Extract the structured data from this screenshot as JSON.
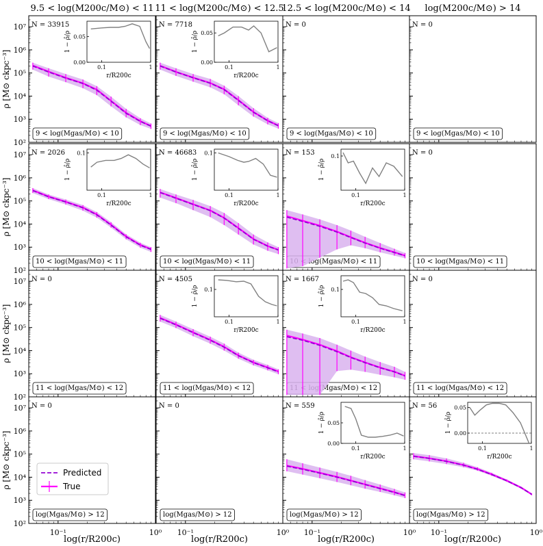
{
  "figure": {
    "column_titles": [
      "9.5 < log(M200c/M⊙) < 11",
      "11 < log(M200c/M⊙) < 12.5",
      "12.5 < log(M200c/M⊙) < 14",
      "log(M200c/M⊙) > 14"
    ],
    "row_labels": [
      "9 < log(Mgas/M⊙) < 10",
      "10 < log(Mgas/M⊙) < 11",
      "11 < log(Mgas/M⊙) < 12",
      "log(Mgas/M⊙) > 12"
    ],
    "y_axis_label": "ρ [M⊙ ckpc⁻³]",
    "x_axis_label": "log(r/R200c)",
    "inset_y_label": "1 − ρ̂/ρ",
    "inset_x_label": "r/R200c",
    "legend": {
      "predicted": "Predicted",
      "true": "True"
    },
    "colors": {
      "predicted": "#9400d3",
      "true": "#ff00ff",
      "band": "#d9b3ee",
      "inset_line": "#808080"
    }
  },
  "chart_data": {
    "type": "line",
    "x_scale": "log",
    "y_scale": "log",
    "xlim": [
      0.05,
      1.0
    ],
    "ylim": [
      100,
      30000000
    ],
    "x_tick_labels": [
      "10⁻¹",
      "10⁰"
    ],
    "y_tick_labels": [
      "10²",
      "10³",
      "10⁴",
      "10⁵",
      "10⁶",
      "10⁷"
    ],
    "panels": [
      {
        "row": 0,
        "col": 0,
        "n": "N = 33915",
        "x": [
          0.055,
          0.08,
          0.12,
          0.18,
          0.25,
          0.35,
          0.5,
          0.7,
          0.9
        ],
        "predicted": [
          200000,
          110000,
          60000,
          35000,
          18000,
          6000,
          1800,
          800,
          500
        ],
        "true": [
          210000,
          115000,
          62000,
          36000,
          19000,
          6200,
          1900,
          820,
          510
        ],
        "band_lo": [
          140000,
          70000,
          40000,
          22000,
          11000,
          3600,
          1200,
          560,
          380
        ],
        "band_hi": [
          280000,
          160000,
          90000,
          52000,
          27000,
          9500,
          2800,
          1100,
          650
        ],
        "inset": {
          "x": [
            0.06,
            0.1,
            0.15,
            0.22,
            0.3,
            0.42,
            0.6,
            0.8,
            0.95
          ],
          "y": [
            0.065,
            0.067,
            0.068,
            0.068,
            0.07,
            0.075,
            0.07,
            0.04,
            0.027
          ],
          "ylim": [
            0,
            0.08
          ],
          "yticks": [
            "0.00",
            "0.05"
          ],
          "xticks": [
            "0.1",
            "1"
          ]
        }
      },
      {
        "row": 0,
        "col": 1,
        "n": "N = 7718",
        "x": [
          0.055,
          0.08,
          0.12,
          0.18,
          0.25,
          0.35,
          0.5,
          0.7,
          0.9
        ],
        "predicted": [
          200000,
          110000,
          62000,
          36000,
          19000,
          6500,
          2000,
          850,
          520
        ],
        "true": [
          205000,
          112000,
          63000,
          37000,
          19500,
          6700,
          2050,
          870,
          530
        ],
        "band_lo": [
          140000,
          75000,
          42000,
          24000,
          12000,
          4000,
          1300,
          600,
          390
        ],
        "band_hi": [
          280000,
          160000,
          90000,
          55000,
          28000,
          10000,
          3000,
          1150,
          680
        ],
        "inset": {
          "x": [
            0.06,
            0.08,
            0.12,
            0.18,
            0.25,
            0.32,
            0.45,
            0.65,
            0.95
          ],
          "y": [
            0.045,
            0.05,
            0.06,
            0.06,
            0.055,
            0.062,
            0.05,
            0.018,
            0.025
          ],
          "ylim": [
            0,
            0.07
          ],
          "yticks": [
            "0.00",
            "0.05"
          ],
          "xticks": [
            "0.1",
            "1"
          ]
        }
      },
      {
        "row": 0,
        "col": 2,
        "n": "N = 0"
      },
      {
        "row": 0,
        "col": 3,
        "n": "N = 0"
      },
      {
        "row": 1,
        "col": 0,
        "n": "N = 2026",
        "x": [
          0.055,
          0.08,
          0.12,
          0.18,
          0.25,
          0.35,
          0.5,
          0.7,
          0.9
        ],
        "predicted": [
          280000,
          150000,
          90000,
          50000,
          25000,
          9000,
          2800,
          1200,
          800
        ],
        "true": [
          290000,
          155000,
          92000,
          52000,
          26000,
          9300,
          2900,
          1250,
          820
        ],
        "band_lo": [
          220000,
          120000,
          70000,
          38000,
          19000,
          7000,
          2200,
          950,
          620
        ],
        "band_hi": [
          360000,
          190000,
          115000,
          66000,
          33000,
          12000,
          3600,
          1550,
          1000
        ],
        "inset": {
          "x": [
            0.06,
            0.08,
            0.12,
            0.18,
            0.25,
            0.35,
            0.5,
            0.7,
            0.95
          ],
          "y": [
            0.062,
            0.075,
            0.08,
            0.08,
            0.085,
            0.095,
            0.085,
            0.07,
            0.06
          ],
          "ylim": [
            0,
            0.11
          ],
          "yticks": [
            "0.1"
          ],
          "xticks": [
            "0.1",
            "1"
          ]
        }
      },
      {
        "row": 1,
        "col": 1,
        "n": "N = 46683",
        "x": [
          0.055,
          0.08,
          0.12,
          0.18,
          0.25,
          0.35,
          0.5,
          0.7,
          0.9
        ],
        "predicted": [
          230000,
          130000,
          70000,
          38000,
          18000,
          6500,
          2200,
          1100,
          750
        ],
        "true": [
          235000,
          135000,
          72000,
          39000,
          18500,
          6700,
          2250,
          1120,
          770
        ],
        "band_lo": [
          140000,
          80000,
          40000,
          20000,
          9000,
          3500,
          1300,
          700,
          500
        ],
        "band_hi": [
          330000,
          190000,
          110000,
          60000,
          30000,
          11000,
          3500,
          1600,
          1000
        ],
        "inset": {
          "x": [
            0.06,
            0.1,
            0.15,
            0.2,
            0.25,
            0.35,
            0.5,
            0.7,
            0.95
          ],
          "y": [
            0.1,
            0.09,
            0.08,
            0.075,
            0.077,
            0.085,
            0.07,
            0.04,
            0.035
          ],
          "ylim": [
            0,
            0.11
          ],
          "yticks": [
            "0.1"
          ],
          "xticks": [
            "0.1",
            "1"
          ]
        }
      },
      {
        "row": 1,
        "col": 2,
        "n": "N = 153",
        "x": [
          0.055,
          0.08,
          0.12,
          0.18,
          0.25,
          0.35,
          0.5,
          0.7,
          0.9
        ],
        "predicted": [
          20000,
          13000,
          8000,
          4500,
          2600,
          1500,
          900,
          580,
          420
        ],
        "true": [
          22000,
          14000,
          8500,
          4700,
          2700,
          1550,
          920,
          600,
          430
        ],
        "band_lo": [
          120,
          150,
          350,
          800,
          1200,
          900,
          600,
          430,
          330
        ],
        "band_hi": [
          40000,
          26000,
          16000,
          9000,
          5200,
          2800,
          1500,
          850,
          560
        ],
        "inset": {
          "x": [
            0.055,
            0.07,
            0.09,
            0.12,
            0.16,
            0.22,
            0.3,
            0.42,
            0.6,
            0.9
          ],
          "y": [
            0.11,
            0.08,
            0.085,
            0.05,
            0.02,
            0.065,
            0.04,
            0.08,
            0.07,
            0.04
          ],
          "ylim": [
            0,
            0.12
          ],
          "yticks": [
            "0.1"
          ],
          "xticks": [
            "0.1",
            "1"
          ]
        }
      },
      {
        "row": 1,
        "col": 3,
        "n": "N = 0"
      },
      {
        "row": 2,
        "col": 0,
        "n": "N = 0"
      },
      {
        "row": 2,
        "col": 1,
        "n": "N = 4505",
        "x": [
          0.055,
          0.08,
          0.12,
          0.18,
          0.25,
          0.35,
          0.5,
          0.7,
          0.9
        ],
        "predicted": [
          250000,
          130000,
          60000,
          28000,
          14000,
          6000,
          3000,
          1800,
          1200
        ],
        "true": [
          260000,
          135000,
          62000,
          29000,
          14500,
          6200,
          3100,
          1850,
          1250
        ],
        "band_lo": [
          180000,
          95000,
          42000,
          20000,
          10000,
          4500,
          2300,
          1400,
          950
        ],
        "band_hi": [
          350000,
          180000,
          85000,
          40000,
          20000,
          8200,
          4000,
          2400,
          1550
        ],
        "inset": {
          "x": [
            0.06,
            0.09,
            0.14,
            0.2,
            0.28,
            0.4,
            0.55,
            0.75,
            0.95
          ],
          "y": [
            0.135,
            0.133,
            0.128,
            0.13,
            0.12,
            0.075,
            0.055,
            0.045,
            0.04
          ],
          "ylim": [
            0,
            0.15
          ],
          "yticks": [
            "0.1"
          ],
          "xticks": [
            "0.1",
            "1"
          ]
        }
      },
      {
        "row": 2,
        "col": 2,
        "n": "N = 1667",
        "x": [
          0.055,
          0.08,
          0.12,
          0.18,
          0.25,
          0.35,
          0.5,
          0.7,
          0.9
        ],
        "predicted": [
          40000,
          28000,
          17000,
          9000,
          5000,
          3000,
          1800,
          1200,
          800
        ],
        "true": [
          45000,
          30000,
          18000,
          9500,
          5200,
          3100,
          1850,
          1220,
          820
        ],
        "band_lo": [
          120,
          120,
          120,
          1300,
          1500,
          1200,
          900,
          700,
          550
        ],
        "band_hi": [
          80000,
          55000,
          35000,
          18000,
          10000,
          5500,
          3200,
          2000,
          1200
        ],
        "inset": {
          "x": [
            0.055,
            0.07,
            0.09,
            0.12,
            0.16,
            0.22,
            0.3,
            0.42,
            0.6,
            0.9
          ],
          "y": [
            0.13,
            0.135,
            0.125,
            0.09,
            0.085,
            0.07,
            0.045,
            0.04,
            0.03,
            0.022
          ],
          "ylim": [
            0,
            0.15
          ],
          "yticks": [
            "0.1"
          ],
          "xticks": [
            "0.1",
            "1"
          ]
        }
      },
      {
        "row": 2,
        "col": 3,
        "n": "N = 0"
      },
      {
        "row": 3,
        "col": 0,
        "n": "N = 0"
      },
      {
        "row": 3,
        "col": 1,
        "n": "N = 0"
      },
      {
        "row": 3,
        "col": 2,
        "n": "N = 559",
        "x": [
          0.055,
          0.08,
          0.12,
          0.18,
          0.25,
          0.35,
          0.5,
          0.7,
          0.9
        ],
        "predicted": [
          30000,
          22000,
          15000,
          10000,
          7000,
          4800,
          3200,
          2200,
          1600
        ],
        "true": [
          32000,
          23000,
          15500,
          10300,
          7200,
          4900,
          3300,
          2250,
          1650
        ],
        "band_lo": [
          18000,
          13000,
          9000,
          6200,
          4500,
          3200,
          2300,
          1650,
          1250
        ],
        "band_hi": [
          60000,
          40000,
          26000,
          17000,
          11500,
          7500,
          4800,
          3100,
          2200
        ],
        "inset": {
          "x": [
            0.06,
            0.08,
            0.1,
            0.13,
            0.18,
            0.25,
            0.35,
            0.5,
            0.7,
            0.95
          ],
          "y": [
            0.09,
            0.085,
            0.06,
            0.02,
            0.015,
            0.015,
            0.017,
            0.02,
            0.025,
            0.018
          ],
          "ylim": [
            0,
            0.1
          ],
          "yticks": [
            "0.00",
            "0.05"
          ],
          "xticks": [
            "0.1",
            "1"
          ]
        }
      },
      {
        "row": 3,
        "col": 3,
        "n": "N = 56",
        "x": [
          0.055,
          0.08,
          0.12,
          0.18,
          0.25,
          0.35,
          0.5,
          0.7,
          0.9
        ],
        "predicted": [
          80000,
          65000,
          48000,
          33000,
          22000,
          13000,
          7000,
          3500,
          1800
        ],
        "true": [
          82000,
          66000,
          49000,
          33500,
          22500,
          13300,
          7100,
          3550,
          1820
        ],
        "band_lo": [
          60000,
          48000,
          37000,
          27000,
          19000,
          11500,
          6300,
          3200,
          1650
        ],
        "band_hi": [
          110000,
          90000,
          65000,
          42000,
          27000,
          15500,
          8000,
          3900,
          2000
        ],
        "inset": {
          "x": [
            0.055,
            0.07,
            0.09,
            0.12,
            0.16,
            0.22,
            0.3,
            0.42,
            0.6,
            0.9
          ],
          "y": [
            0.05,
            0.035,
            0.045,
            0.055,
            0.058,
            0.058,
            0.055,
            0.04,
            0.02,
            -0.02
          ],
          "ylim": [
            -0.02,
            0.06
          ],
          "yticks": [
            "0.00",
            "0.05"
          ],
          "xticks": [
            "0.1",
            "1"
          ],
          "zero_line": true
        }
      }
    ]
  }
}
